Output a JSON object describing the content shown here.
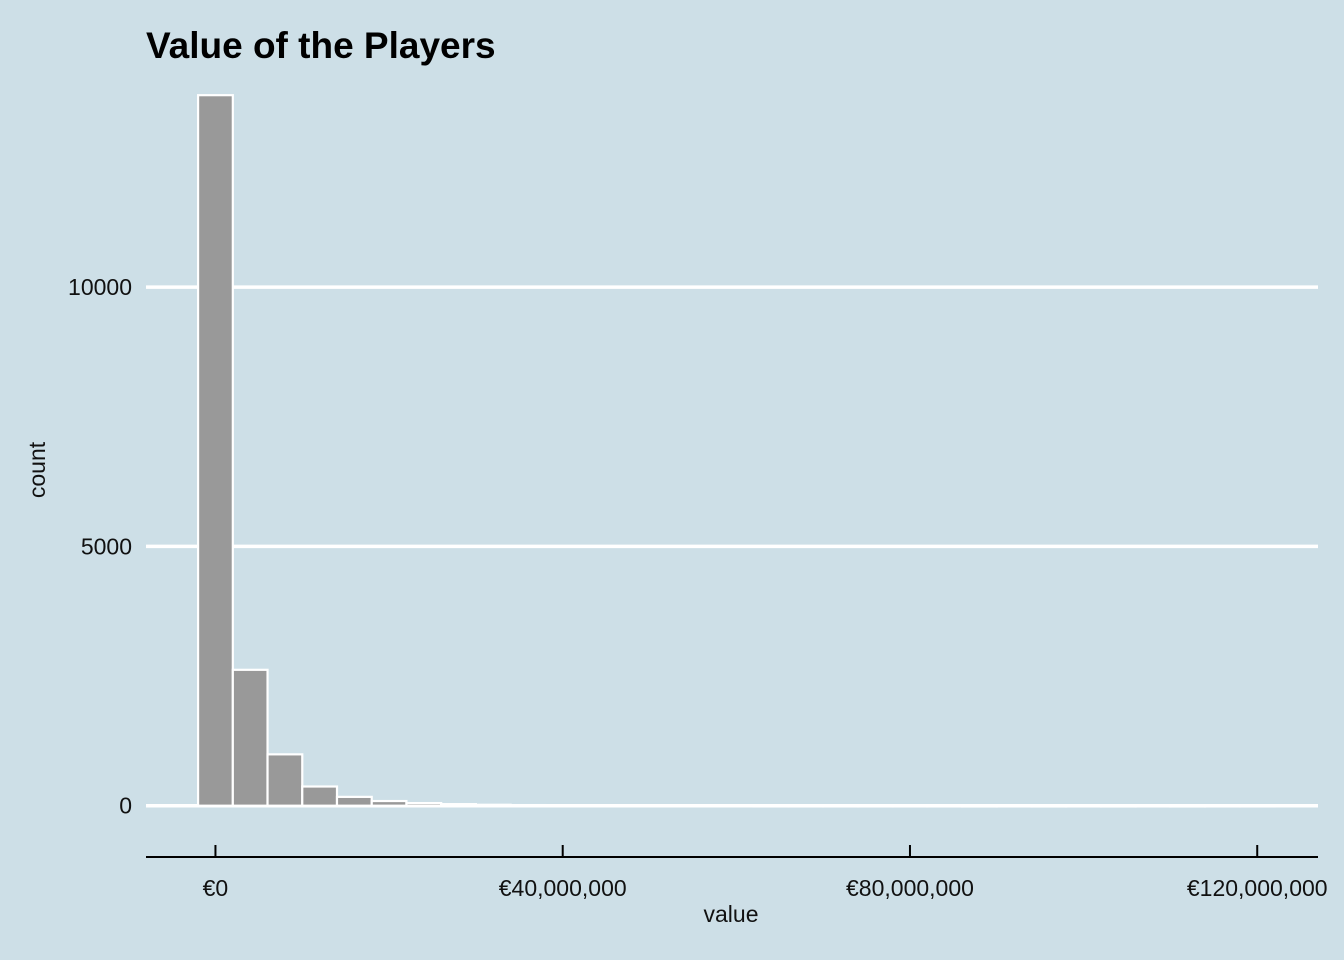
{
  "chart_data": {
    "type": "bar",
    "title": "Value of the Players",
    "xlabel": "value",
    "ylabel": "count",
    "xlim": [
      -8000000,
      127000000
    ],
    "ylim": [
      -700,
      13800
    ],
    "x_ticks": [
      {
        "value": 0,
        "label": "€0"
      },
      {
        "value": 40000000,
        "label": "€40,000,000"
      },
      {
        "value": 80000000,
        "label": "€80,000,000"
      },
      {
        "value": 120000000,
        "label": "€120,000,000"
      }
    ],
    "y_ticks": [
      {
        "value": 0,
        "label": "0"
      },
      {
        "value": 5000,
        "label": "5000"
      },
      {
        "value": 10000,
        "label": "10000"
      }
    ],
    "bin_width": 4000000,
    "bins": [
      {
        "x0": -2000000,
        "x1": 2000000,
        "count": 13700
      },
      {
        "x0": 2000000,
        "x1": 6000000,
        "count": 2620
      },
      {
        "x0": 6000000,
        "x1": 10000000,
        "count": 990
      },
      {
        "x0": 10000000,
        "x1": 14000000,
        "count": 370
      },
      {
        "x0": 14000000,
        "x1": 18000000,
        "count": 170
      },
      {
        "x0": 18000000,
        "x1": 22000000,
        "count": 90
      },
      {
        "x0": 22000000,
        "x1": 26000000,
        "count": 50
      },
      {
        "x0": 26000000,
        "x1": 30000000,
        "count": 30
      },
      {
        "x0": 30000000,
        "x1": 34000000,
        "count": 18
      },
      {
        "x0": 34000000,
        "x1": 38000000,
        "count": 12
      },
      {
        "x0": 38000000,
        "x1": 42000000,
        "count": 8
      },
      {
        "x0": 42000000,
        "x1": 46000000,
        "count": 6
      },
      {
        "x0": 46000000,
        "x1": 50000000,
        "count": 4
      },
      {
        "x0": 50000000,
        "x1": 54000000,
        "count": 3
      },
      {
        "x0": 54000000,
        "x1": 58000000,
        "count": 2
      },
      {
        "x0": 58000000,
        "x1": 62000000,
        "count": 2
      },
      {
        "x0": 62000000,
        "x1": 66000000,
        "count": 1
      },
      {
        "x0": 66000000,
        "x1": 70000000,
        "count": 1
      },
      {
        "x0": 70000000,
        "x1": 74000000,
        "count": 1
      },
      {
        "x0": 74000000,
        "x1": 78000000,
        "count": 1
      },
      {
        "x0": 78000000,
        "x1": 82000000,
        "count": 1
      },
      {
        "x0": 82000000,
        "x1": 86000000,
        "count": 1
      },
      {
        "x0": 86000000,
        "x1": 90000000,
        "count": 0
      },
      {
        "x0": 90000000,
        "x1": 94000000,
        "count": 1
      },
      {
        "x0": 94000000,
        "x1": 98000000,
        "count": 0
      },
      {
        "x0": 98000000,
        "x1": 102000000,
        "count": 1
      },
      {
        "x0": 102000000,
        "x1": 106000000,
        "count": 0
      },
      {
        "x0": 106000000,
        "x1": 110000000,
        "count": 1
      },
      {
        "x0": 110000000,
        "x1": 114000000,
        "count": 0
      },
      {
        "x0": 114000000,
        "x1": 118000000,
        "count": 1
      },
      {
        "x0": 118000000,
        "x1": 122000000,
        "count": 1
      }
    ],
    "grid": "horizontal-major",
    "legend": "none",
    "colors": {
      "background": "#cddfe7",
      "bar_fill": "#999999",
      "bar_stroke": "#ffffff",
      "grid": "#ffffff",
      "axis": "#000000"
    }
  }
}
